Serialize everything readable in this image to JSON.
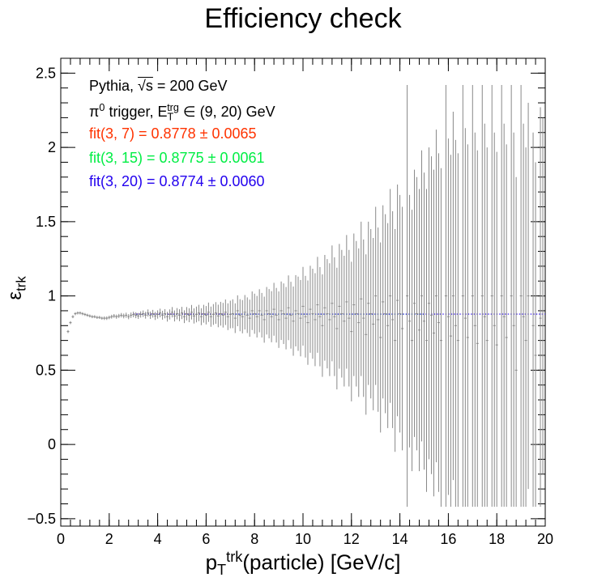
{
  "chart_data": {
    "type": "scatter",
    "title": "Efficiency check",
    "xlabel": {
      "main": "p",
      "sub": "T",
      "sup": "trk",
      "rest": "(particle) [GeV/c]"
    },
    "ylabel": {
      "main": "ε",
      "sub": "trk"
    },
    "xlim": [
      0,
      20
    ],
    "ylim": [
      -0.55,
      2.6
    ],
    "x_ticks": [
      0,
      2,
      4,
      6,
      8,
      10,
      12,
      14,
      16,
      18,
      20
    ],
    "y_ticks": [
      -0.5,
      0,
      0.5,
      1,
      1.5,
      2,
      2.5
    ],
    "x_tick_labels": [
      "0",
      "2",
      "4",
      "6",
      "8",
      "10",
      "12",
      "14",
      "16",
      "18",
      "20"
    ],
    "y_tick_labels": [
      "−0.5",
      "0",
      "0.5",
      "1",
      "1.5",
      "2",
      "2.5"
    ],
    "annotations": [
      {
        "text_main": "Pythia, ",
        "text_sqrt": "√s",
        "text_rest": " = 200 GeV",
        "color": "#000000"
      },
      {
        "text_pi": "π",
        "text_pi_sup": "0",
        "text_mid": " trigger, E",
        "text_e_sub": "T",
        "text_e_sup": "trg",
        "text_rest": " ∈ (9, 20) GeV",
        "color": "#000000"
      },
      {
        "text": "fit(3, 7) = 0.8778 ± 0.0065",
        "color": "#ff3300"
      },
      {
        "text": "fit(3, 15) = 0.8775 ± 0.0061",
        "color": "#00ee44"
      },
      {
        "text": "fit(3, 20) = 0.8774 ± 0.0060",
        "color": "#2200ee"
      }
    ],
    "fits": [
      {
        "range": [
          3,
          7
        ],
        "value": 0.8778,
        "error": 0.0065,
        "color": "#ff3300"
      },
      {
        "range": [
          3,
          15
        ],
        "value": 0.8775,
        "error": 0.0061,
        "color": "#00ee44"
      },
      {
        "range": [
          3,
          20
        ],
        "value": 0.8774,
        "error": 0.006,
        "color": "#2200ee"
      }
    ],
    "points_note_none": "",
    "series": [
      {
        "marker_color": "#888888",
        "points": [
          [
            0.3,
            0.76,
            0.01
          ],
          [
            0.4,
            0.82,
            0.01
          ],
          [
            0.5,
            0.86,
            0.01
          ],
          [
            0.6,
            0.88,
            0.01
          ],
          [
            0.7,
            0.885,
            0.01
          ],
          [
            0.8,
            0.885,
            0.01
          ],
          [
            0.9,
            0.88,
            0.01
          ],
          [
            1.0,
            0.875,
            0.01
          ],
          [
            1.1,
            0.87,
            0.01
          ],
          [
            1.2,
            0.865,
            0.01
          ],
          [
            1.3,
            0.86,
            0.01
          ],
          [
            1.4,
            0.86,
            0.01
          ],
          [
            1.5,
            0.855,
            0.01
          ],
          [
            1.6,
            0.855,
            0.01
          ],
          [
            1.7,
            0.85,
            0.01
          ],
          [
            1.8,
            0.85,
            0.012
          ],
          [
            1.9,
            0.85,
            0.012
          ],
          [
            2.0,
            0.855,
            0.012
          ],
          [
            2.1,
            0.86,
            0.013
          ],
          [
            2.2,
            0.865,
            0.013
          ],
          [
            2.3,
            0.86,
            0.014
          ],
          [
            2.4,
            0.865,
            0.014
          ],
          [
            2.5,
            0.87,
            0.015
          ],
          [
            2.6,
            0.865,
            0.016
          ],
          [
            2.7,
            0.87,
            0.017
          ],
          [
            2.8,
            0.86,
            0.017
          ],
          [
            2.9,
            0.87,
            0.018
          ],
          [
            3.0,
            0.875,
            0.019
          ],
          [
            3.1,
            0.87,
            0.02
          ],
          [
            3.2,
            0.865,
            0.02
          ],
          [
            3.3,
            0.875,
            0.021
          ],
          [
            3.4,
            0.88,
            0.022
          ],
          [
            3.5,
            0.87,
            0.023
          ],
          [
            3.6,
            0.885,
            0.024
          ],
          [
            3.7,
            0.87,
            0.025
          ],
          [
            3.8,
            0.88,
            0.026
          ],
          [
            3.9,
            0.865,
            0.027
          ],
          [
            4.0,
            0.875,
            0.028
          ],
          [
            4.1,
            0.885,
            0.029
          ],
          [
            4.2,
            0.87,
            0.03
          ],
          [
            4.3,
            0.88,
            0.031
          ],
          [
            4.4,
            0.86,
            0.033
          ],
          [
            4.5,
            0.875,
            0.034
          ],
          [
            4.6,
            0.89,
            0.035
          ],
          [
            4.7,
            0.865,
            0.037
          ],
          [
            4.8,
            0.88,
            0.038
          ],
          [
            4.9,
            0.87,
            0.04
          ],
          [
            5.0,
            0.885,
            0.041
          ],
          [
            5.1,
            0.86,
            0.043
          ],
          [
            5.2,
            0.88,
            0.045
          ],
          [
            5.3,
            0.87,
            0.047
          ],
          [
            5.4,
            0.89,
            0.049
          ],
          [
            5.5,
            0.865,
            0.051
          ],
          [
            5.6,
            0.875,
            0.053
          ],
          [
            5.7,
            0.885,
            0.055
          ],
          [
            5.8,
            0.86,
            0.057
          ],
          [
            5.9,
            0.88,
            0.06
          ],
          [
            6.0,
            0.87,
            0.062
          ],
          [
            6.1,
            0.89,
            0.065
          ],
          [
            6.2,
            0.86,
            0.068
          ],
          [
            6.3,
            0.875,
            0.07
          ],
          [
            6.4,
            0.885,
            0.073
          ],
          [
            6.5,
            0.865,
            0.076
          ],
          [
            6.6,
            0.88,
            0.08
          ],
          [
            6.7,
            0.87,
            0.083
          ],
          [
            6.8,
            0.89,
            0.086
          ],
          [
            6.9,
            0.86,
            0.09
          ],
          [
            7.0,
            0.875,
            0.093
          ],
          [
            7.1,
            0.88,
            0.097
          ],
          [
            7.2,
            0.85,
            0.1
          ],
          [
            7.3,
            0.9,
            0.104
          ],
          [
            7.4,
            0.87,
            0.108
          ],
          [
            7.5,
            0.86,
            0.112
          ],
          [
            7.6,
            0.89,
            0.116
          ],
          [
            7.7,
            0.87,
            0.12
          ],
          [
            7.8,
            0.85,
            0.125
          ],
          [
            7.9,
            0.9,
            0.13
          ],
          [
            8.0,
            0.88,
            0.135
          ],
          [
            8.1,
            0.86,
            0.14
          ],
          [
            8.2,
            0.9,
            0.145
          ],
          [
            8.3,
            0.87,
            0.15
          ],
          [
            8.4,
            0.84,
            0.155
          ],
          [
            8.5,
            0.9,
            0.16
          ],
          [
            8.6,
            0.88,
            0.166
          ],
          [
            8.7,
            0.86,
            0.172
          ],
          [
            8.8,
            0.91,
            0.178
          ],
          [
            8.9,
            0.87,
            0.184
          ],
          [
            9.0,
            0.84,
            0.19
          ],
          [
            9.1,
            0.9,
            0.197
          ],
          [
            9.2,
            0.88,
            0.204
          ],
          [
            9.3,
            0.85,
            0.21
          ],
          [
            9.4,
            0.92,
            0.218
          ],
          [
            9.5,
            0.87,
            0.225
          ],
          [
            9.6,
            0.83,
            0.233
          ],
          [
            9.7,
            0.9,
            0.24
          ],
          [
            9.8,
            0.88,
            0.25
          ],
          [
            9.9,
            0.85,
            0.257
          ],
          [
            10.0,
            0.93,
            0.265
          ],
          [
            10.1,
            0.86,
            0.275
          ],
          [
            10.2,
            0.82,
            0.284
          ],
          [
            10.3,
            0.91,
            0.293
          ],
          [
            10.4,
            0.88,
            0.303
          ],
          [
            10.5,
            0.84,
            0.313
          ],
          [
            10.6,
            0.94,
            0.323
          ],
          [
            10.7,
            0.86,
            0.334
          ],
          [
            10.8,
            0.8,
            0.345
          ],
          [
            10.9,
            0.92,
            0.356
          ],
          [
            11.0,
            0.88,
            0.368
          ],
          [
            11.1,
            0.84,
            0.38
          ],
          [
            11.2,
            0.95,
            0.39
          ],
          [
            11.3,
            0.86,
            0.4
          ],
          [
            11.4,
            0.78,
            0.41
          ],
          [
            11.5,
            0.93,
            0.42
          ],
          [
            11.6,
            0.88,
            0.43
          ],
          [
            11.7,
            0.83,
            0.44
          ],
          [
            11.8,
            0.96,
            0.45
          ],
          [
            11.9,
            0.85,
            0.46
          ],
          [
            12.0,
            0.76,
            0.47
          ],
          [
            12.1,
            0.94,
            0.48
          ],
          [
            12.2,
            0.88,
            0.49
          ],
          [
            12.3,
            0.82,
            0.5
          ],
          [
            12.4,
            0.98,
            0.52
          ],
          [
            12.5,
            0.85,
            0.53
          ],
          [
            12.6,
            0.74,
            0.54
          ],
          [
            12.7,
            0.95,
            0.55
          ],
          [
            12.8,
            0.88,
            0.57
          ],
          [
            12.9,
            0.81,
            0.58
          ],
          [
            13.0,
            1.0,
            0.6
          ],
          [
            13.1,
            0.84,
            0.62
          ],
          [
            13.2,
            0.72,
            0.64
          ],
          [
            13.3,
            0.96,
            0.65
          ],
          [
            13.4,
            0.88,
            0.67
          ],
          [
            13.5,
            0.8,
            0.69
          ],
          [
            13.6,
            1.0,
            0.72
          ],
          [
            13.7,
            0.84,
            0.73
          ],
          [
            13.8,
            0.7,
            0.75
          ],
          [
            13.9,
            0.97,
            0.78
          ],
          [
            14.0,
            0.88,
            0.8
          ],
          [
            14.1,
            0.78,
            0.82
          ],
          [
            14.3,
            1.0,
            1.42
          ],
          [
            14.4,
            0.83,
            0.85
          ],
          [
            14.5,
            0.7,
            0.88
          ],
          [
            14.6,
            0.95,
            0.9
          ],
          [
            14.7,
            0.88,
            0.92
          ],
          [
            14.8,
            0.77,
            0.95
          ],
          [
            14.9,
            1.0,
            0.98
          ],
          [
            15.0,
            0.83,
            1.0
          ],
          [
            15.1,
            0.7,
            1.02
          ],
          [
            15.2,
            0.95,
            1.05
          ],
          [
            15.3,
            0.87,
            1.07
          ],
          [
            15.4,
            0.75,
            1.1
          ],
          [
            15.5,
            1.0,
            1.12
          ],
          [
            15.6,
            0.82,
            1.14
          ],
          [
            15.7,
            0.7,
            1.16
          ],
          [
            15.9,
            1.0,
            1.42
          ],
          [
            16.0,
            0.86,
            1.2
          ],
          [
            16.1,
            0.73,
            1.22
          ],
          [
            16.2,
            1.0,
            1.24
          ],
          [
            16.3,
            0.8,
            1.25
          ],
          [
            16.4,
            0.7,
            1.26
          ],
          [
            16.6,
            1.0,
            1.42
          ],
          [
            16.7,
            0.85,
            1.28
          ],
          [
            16.8,
            0.72,
            1.3
          ],
          [
            17.0,
            1.0,
            1.42
          ],
          [
            17.1,
            0.8,
            1.3
          ],
          [
            17.2,
            0.68,
            1.3
          ],
          [
            17.4,
            1.0,
            1.42
          ],
          [
            17.5,
            0.86,
            1.3
          ],
          [
            17.6,
            0.7,
            1.3
          ],
          [
            17.8,
            1.0,
            1.42
          ],
          [
            17.9,
            0.8,
            1.3
          ],
          [
            18.0,
            0.67,
            1.3
          ],
          [
            18.2,
            1.0,
            1.42
          ],
          [
            18.3,
            0.86,
            1.3
          ],
          [
            18.4,
            0.72,
            1.3
          ],
          [
            18.6,
            1.0,
            1.42
          ],
          [
            18.7,
            0.8,
            1.3
          ],
          [
            18.8,
            0.5,
            1.3
          ],
          [
            19.0,
            1.0,
            1.42
          ],
          [
            19.1,
            0.86,
            1.3
          ],
          [
            19.2,
            0.7,
            1.3
          ],
          [
            19.3,
            1.0,
            1.3
          ],
          [
            19.5,
            0.8,
            1.3
          ],
          [
            19.6,
            0.6,
            1.3
          ],
          [
            19.8,
            0.85,
            1.42
          ],
          [
            19.9,
            1.0,
            1.2
          ]
        ]
      }
    ]
  }
}
